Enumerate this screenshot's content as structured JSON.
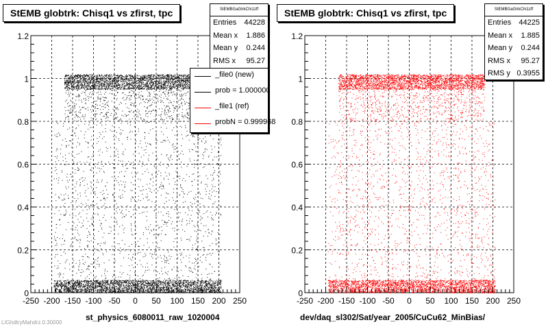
{
  "panels": [
    {
      "title": "StEMB globtrk: Chisq1 vs zfirst, tpc",
      "xlabel": "st_physics_6080011_raw_1020004",
      "color": "#000000",
      "stats": {
        "header": "StEMBGaGlrkChi1zff",
        "rows": [
          {
            "label": "Entries",
            "value": "44228"
          },
          {
            "label": "Mean x",
            "value": "1.886"
          },
          {
            "label": "Mean y",
            "value": "0.244"
          },
          {
            "label": "RMS x",
            "value": "95.27"
          }
        ]
      },
      "legend": [
        {
          "label": "_file0 (new)",
          "color": "#000000"
        },
        {
          "label": "prob = 1.000000",
          "color": "#000000"
        },
        {
          "label": "_file1 (ref)",
          "color": "#ff0000"
        },
        {
          "label": "probN = 0.999968",
          "color": "#ff0000"
        }
      ]
    },
    {
      "title": "StEMB globtrk: Chisq1 vs zfirst, tpc",
      "xlabel": "dev/daq_sl302/Sat/year_2005/CuCu62_MinBias/",
      "color": "#ff0000",
      "stats": {
        "header": "StEMBGaGlrkChi1zff",
        "rows": [
          {
            "label": "Entries",
            "value": "44225"
          },
          {
            "label": "Mean x",
            "value": "1.885"
          },
          {
            "label": "Mean y",
            "value": "0.244"
          },
          {
            "label": "RMS x",
            "value": "95.27"
          },
          {
            "label": "RMS y",
            "value": "0.3955"
          }
        ]
      }
    }
  ],
  "footer_text": "LIGhdtryMahdrz.0.30000",
  "chart_data": [
    {
      "type": "scatter",
      "title": "StEMB globtrk: Chisq1 vs zfirst, tpc",
      "xlabel": "st_physics_6080011_raw_1020004",
      "ylabel": "",
      "xlim": [
        -250,
        250
      ],
      "ylim": [
        0,
        1.2
      ],
      "xticks": [
        -250,
        -200,
        -150,
        -100,
        -50,
        0,
        50,
        100,
        150,
        200,
        250
      ],
      "yticks": [
        0,
        0.2,
        0.4,
        0.6,
        0.8,
        1,
        1.2
      ],
      "tick_labels_x": [
        "-250",
        "-200",
        "-150",
        "-100",
        "-50",
        "0",
        "50",
        "100",
        "150",
        "200",
        "250"
      ],
      "tick_labels_y": [
        "0",
        "0.2",
        "0.4",
        "0.6",
        "0.8",
        "1",
        "1.2"
      ],
      "grid": true,
      "point_color": "#000000",
      "point_regions": [
        {
          "x_range": [
            -195,
            205
          ],
          "y_range": [
            0,
            0.06
          ],
          "density": "very high"
        },
        {
          "x_range": [
            -195,
            205
          ],
          "y_range": [
            0.06,
            0.8
          ],
          "density": "sparse"
        },
        {
          "x_range": [
            -170,
            180
          ],
          "y_range": [
            0.8,
            0.95
          ],
          "density": "moderate"
        },
        {
          "x_range": [
            -170,
            180
          ],
          "y_range": [
            0.95,
            1.02
          ],
          "density": "very high"
        }
      ]
    },
    {
      "type": "scatter",
      "title": "StEMB globtrk: Chisq1 vs zfirst, tpc",
      "xlabel": "dev/daq_sl302/Sat/year_2005/CuCu62_MinBias/",
      "ylabel": "",
      "xlim": [
        -250,
        250
      ],
      "ylim": [
        0,
        1.2
      ],
      "xticks": [
        -250,
        -200,
        -150,
        -100,
        -50,
        0,
        50,
        100,
        150,
        200,
        250
      ],
      "yticks": [
        0,
        0.2,
        0.4,
        0.6,
        0.8,
        1,
        1.2
      ],
      "tick_labels_x": [
        "-250",
        "-200",
        "-150",
        "-100",
        "-50",
        "0",
        "50",
        "100",
        "150",
        "200",
        "250"
      ],
      "tick_labels_y": [
        "0",
        "0.2",
        "0.4",
        "0.6",
        "0.8",
        "1",
        "1.2"
      ],
      "grid": true,
      "point_color": "#ff0000",
      "point_regions": [
        {
          "x_range": [
            -195,
            205
          ],
          "y_range": [
            0,
            0.06
          ],
          "density": "very high"
        },
        {
          "x_range": [
            -195,
            205
          ],
          "y_range": [
            0.06,
            0.8
          ],
          "density": "sparse"
        },
        {
          "x_range": [
            -170,
            180
          ],
          "y_range": [
            0.8,
            0.95
          ],
          "density": "moderate"
        },
        {
          "x_range": [
            -170,
            180
          ],
          "y_range": [
            0.95,
            1.02
          ],
          "density": "very high"
        }
      ]
    }
  ]
}
